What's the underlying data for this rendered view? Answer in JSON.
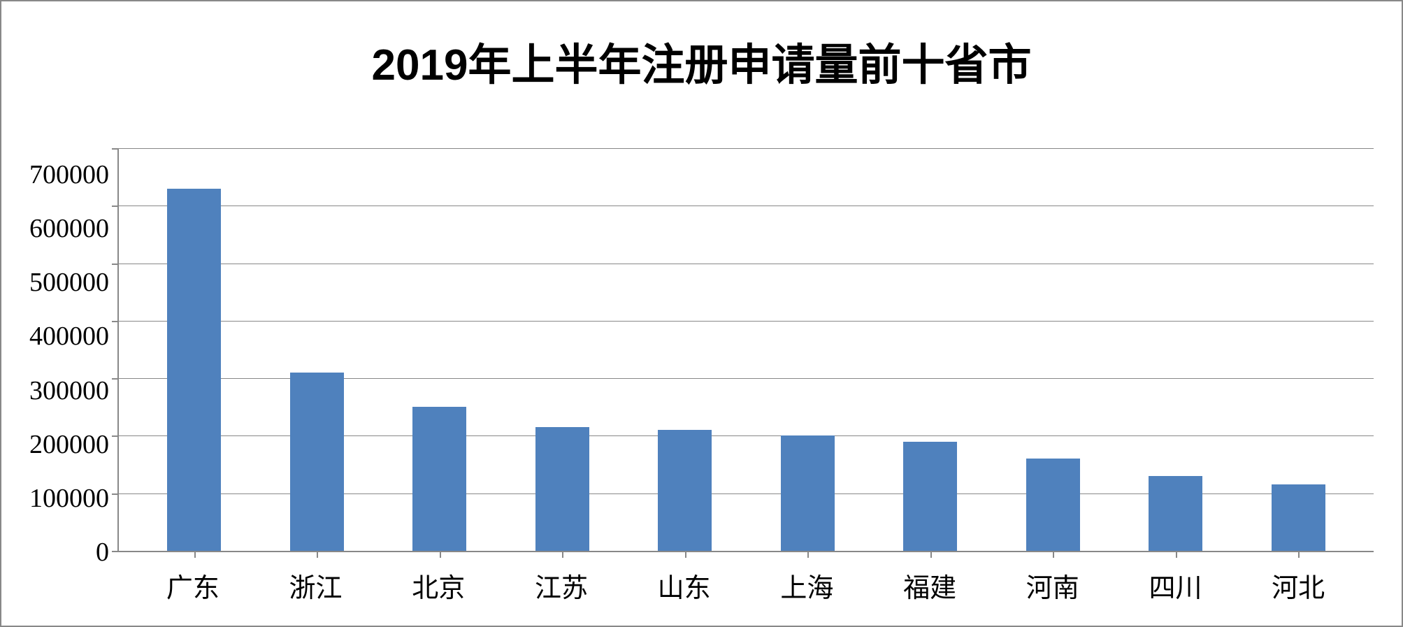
{
  "chart": {
    "type": "bar",
    "title": "2019年上半年注册申请量前十省市",
    "title_fontsize": 62,
    "title_color": "#000000",
    "categories": [
      "广东",
      "浙江",
      "北京",
      "江苏",
      "山东",
      "上海",
      "福建",
      "河南",
      "四川",
      "河北"
    ],
    "values": [
      630000,
      310000,
      250000,
      215000,
      210000,
      200000,
      190000,
      160000,
      130000,
      115000
    ],
    "bar_color": "#4f81bd",
    "ylim": [
      0,
      700000
    ],
    "ytick_step": 100000,
    "yticks": [
      "700000",
      "600000",
      "500000",
      "400000",
      "300000",
      "200000",
      "100000",
      "0"
    ],
    "ytick_values": [
      700000,
      600000,
      500000,
      400000,
      300000,
      200000,
      100000,
      0
    ],
    "label_fontsize": 38,
    "label_color": "#000000",
    "background_color": "#ffffff",
    "grid_color": "#888888",
    "axis_color": "#888888",
    "border_color": "#888888",
    "bar_width": 0.44
  }
}
